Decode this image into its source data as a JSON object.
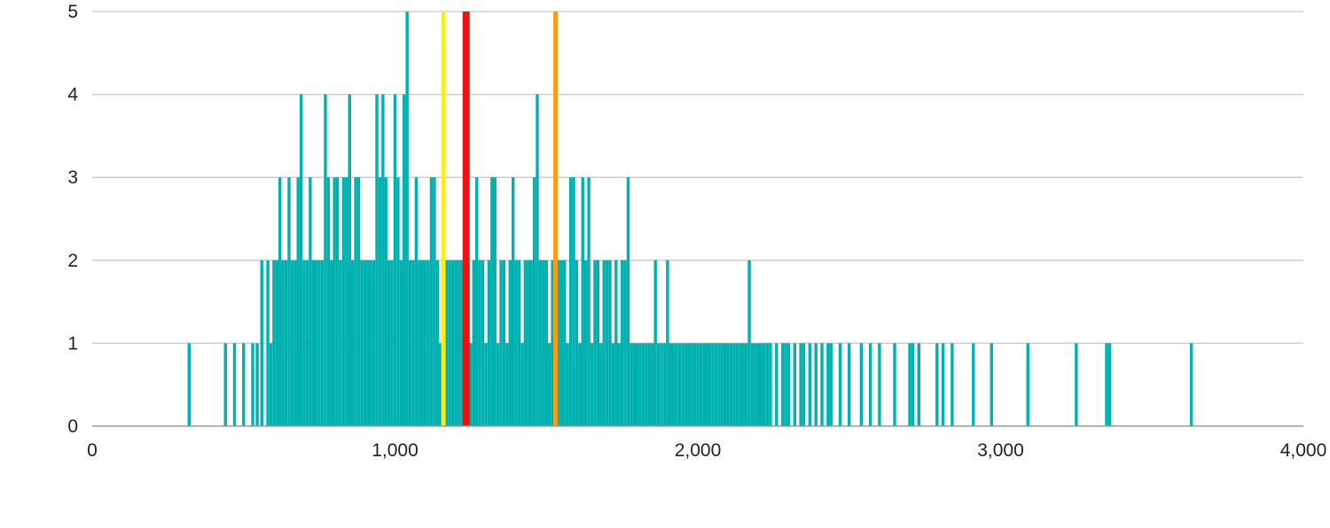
{
  "chart_data": {
    "type": "bar",
    "title": "",
    "xlabel": "",
    "ylabel": "",
    "xlim": [
      0,
      4000
    ],
    "ylim": [
      0,
      5
    ],
    "grid": true,
    "bar_width": 10,
    "x_ticks": [
      {
        "value": 0,
        "label": "0"
      },
      {
        "value": 1000,
        "label": "1,000"
      },
      {
        "value": 2000,
        "label": "2,000"
      },
      {
        "value": 3000,
        "label": "3,000"
      },
      {
        "value": 4000,
        "label": "4,000"
      }
    ],
    "y_ticks": [
      {
        "value": 0,
        "label": "0"
      },
      {
        "value": 1,
        "label": "1"
      },
      {
        "value": 2,
        "label": "2"
      },
      {
        "value": 3,
        "label": "3"
      },
      {
        "value": 4,
        "label": "4"
      },
      {
        "value": 5,
        "label": "5"
      }
    ],
    "colors": {
      "bars": "#00b1b0",
      "grid": "#c8c8c8",
      "axis": "#9a9a9a",
      "yellow_line": "#ffeb1a",
      "red_line": "#ee1111",
      "orange_line": "#f59c1a"
    },
    "reference_lines": [
      {
        "x": 1160,
        "color": "#ffeb1a"
      },
      {
        "x": 1235,
        "color": "#ee1111"
      },
      {
        "x": 1530,
        "color": "#f59c1a"
      }
    ],
    "series": [
      {
        "values": [
          [
            320,
            1
          ],
          [
            440,
            1
          ],
          [
            470,
            1
          ],
          [
            500,
            1
          ],
          [
            530,
            1
          ],
          [
            545,
            1
          ],
          [
            560,
            2
          ],
          [
            580,
            2
          ],
          [
            590,
            1
          ],
          [
            600,
            2
          ],
          [
            610,
            2
          ],
          [
            620,
            3
          ],
          [
            630,
            2
          ],
          [
            640,
            2
          ],
          [
            650,
            3
          ],
          [
            660,
            2
          ],
          [
            670,
            2
          ],
          [
            680,
            3
          ],
          [
            690,
            4
          ],
          [
            700,
            2
          ],
          [
            710,
            2
          ],
          [
            720,
            3
          ],
          [
            730,
            2
          ],
          [
            740,
            2
          ],
          [
            750,
            2
          ],
          [
            760,
            2
          ],
          [
            770,
            4
          ],
          [
            780,
            3
          ],
          [
            790,
            2
          ],
          [
            800,
            3
          ],
          [
            810,
            3
          ],
          [
            820,
            2
          ],
          [
            830,
            3
          ],
          [
            840,
            3
          ],
          [
            850,
            4
          ],
          [
            860,
            2
          ],
          [
            870,
            3
          ],
          [
            880,
            3
          ],
          [
            890,
            2
          ],
          [
            900,
            2
          ],
          [
            910,
            2
          ],
          [
            920,
            2
          ],
          [
            930,
            2
          ],
          [
            940,
            4
          ],
          [
            950,
            3
          ],
          [
            960,
            4
          ],
          [
            970,
            3
          ],
          [
            980,
            2
          ],
          [
            990,
            2
          ],
          [
            1000,
            4
          ],
          [
            1010,
            3
          ],
          [
            1020,
            2
          ],
          [
            1030,
            4
          ],
          [
            1040,
            5
          ],
          [
            1050,
            2
          ],
          [
            1060,
            2
          ],
          [
            1070,
            3
          ],
          [
            1080,
            2
          ],
          [
            1090,
            2
          ],
          [
            1100,
            2
          ],
          [
            1110,
            2
          ],
          [
            1120,
            3
          ],
          [
            1130,
            3
          ],
          [
            1140,
            2
          ],
          [
            1150,
            1
          ],
          [
            1160,
            1
          ],
          [
            1170,
            2
          ],
          [
            1180,
            2
          ],
          [
            1190,
            2
          ],
          [
            1200,
            2
          ],
          [
            1210,
            2
          ],
          [
            1220,
            2
          ],
          [
            1230,
            1
          ],
          [
            1240,
            2
          ],
          [
            1250,
            1
          ],
          [
            1260,
            2
          ],
          [
            1270,
            3
          ],
          [
            1280,
            2
          ],
          [
            1290,
            2
          ],
          [
            1300,
            1
          ],
          [
            1310,
            2
          ],
          [
            1320,
            3
          ],
          [
            1330,
            3
          ],
          [
            1340,
            1
          ],
          [
            1350,
            2
          ],
          [
            1360,
            2
          ],
          [
            1370,
            1
          ],
          [
            1380,
            2
          ],
          [
            1390,
            3
          ],
          [
            1400,
            2
          ],
          [
            1410,
            2
          ],
          [
            1420,
            1
          ],
          [
            1430,
            2
          ],
          [
            1440,
            2
          ],
          [
            1450,
            2
          ],
          [
            1460,
            3
          ],
          [
            1470,
            4
          ],
          [
            1480,
            2
          ],
          [
            1490,
            2
          ],
          [
            1500,
            2
          ],
          [
            1510,
            1
          ],
          [
            1520,
            2
          ],
          [
            1530,
            2
          ],
          [
            1540,
            2
          ],
          [
            1550,
            2
          ],
          [
            1560,
            2
          ],
          [
            1570,
            1
          ],
          [
            1580,
            3
          ],
          [
            1590,
            3
          ],
          [
            1600,
            2
          ],
          [
            1610,
            1
          ],
          [
            1620,
            3
          ],
          [
            1630,
            2
          ],
          [
            1640,
            3
          ],
          [
            1650,
            1
          ],
          [
            1660,
            2
          ],
          [
            1670,
            2
          ],
          [
            1680,
            1
          ],
          [
            1690,
            2
          ],
          [
            1700,
            2
          ],
          [
            1710,
            2
          ],
          [
            1720,
            1
          ],
          [
            1730,
            2
          ],
          [
            1740,
            1
          ],
          [
            1750,
            2
          ],
          [
            1760,
            2
          ],
          [
            1770,
            3
          ],
          [
            1780,
            1
          ],
          [
            1790,
            1
          ],
          [
            1800,
            1
          ],
          [
            1810,
            1
          ],
          [
            1820,
            1
          ],
          [
            1830,
            1
          ],
          [
            1840,
            1
          ],
          [
            1850,
            1
          ],
          [
            1860,
            2
          ],
          [
            1870,
            1
          ],
          [
            1880,
            1
          ],
          [
            1890,
            1
          ],
          [
            1900,
            2
          ],
          [
            1910,
            1
          ],
          [
            1920,
            1
          ],
          [
            1930,
            1
          ],
          [
            1940,
            1
          ],
          [
            1950,
            1
          ],
          [
            1960,
            1
          ],
          [
            1970,
            1
          ],
          [
            1980,
            1
          ],
          [
            1990,
            1
          ],
          [
            2000,
            1
          ],
          [
            2010,
            1
          ],
          [
            2020,
            1
          ],
          [
            2030,
            1
          ],
          [
            2040,
            1
          ],
          [
            2050,
            1
          ],
          [
            2060,
            1
          ],
          [
            2070,
            1
          ],
          [
            2080,
            1
          ],
          [
            2090,
            1
          ],
          [
            2100,
            1
          ],
          [
            2110,
            1
          ],
          [
            2120,
            1
          ],
          [
            2130,
            1
          ],
          [
            2140,
            1
          ],
          [
            2150,
            1
          ],
          [
            2160,
            1
          ],
          [
            2170,
            2
          ],
          [
            2180,
            1
          ],
          [
            2190,
            1
          ],
          [
            2200,
            1
          ],
          [
            2210,
            1
          ],
          [
            2220,
            1
          ],
          [
            2230,
            1
          ],
          [
            2240,
            1
          ],
          [
            2260,
            1
          ],
          [
            2280,
            1
          ],
          [
            2290,
            1
          ],
          [
            2300,
            1
          ],
          [
            2320,
            1
          ],
          [
            2340,
            1
          ],
          [
            2350,
            1
          ],
          [
            2370,
            1
          ],
          [
            2390,
            1
          ],
          [
            2410,
            1
          ],
          [
            2430,
            1
          ],
          [
            2440,
            1
          ],
          [
            2470,
            1
          ],
          [
            2500,
            1
          ],
          [
            2540,
            1
          ],
          [
            2570,
            1
          ],
          [
            2600,
            1
          ],
          [
            2650,
            1
          ],
          [
            2700,
            1
          ],
          [
            2710,
            1
          ],
          [
            2730,
            1
          ],
          [
            2790,
            1
          ],
          [
            2810,
            1
          ],
          [
            2840,
            1
          ],
          [
            2910,
            1
          ],
          [
            2970,
            1
          ],
          [
            3090,
            1
          ],
          [
            3250,
            1
          ],
          [
            3350,
            1
          ],
          [
            3360,
            1
          ],
          [
            3630,
            1
          ]
        ]
      }
    ]
  }
}
